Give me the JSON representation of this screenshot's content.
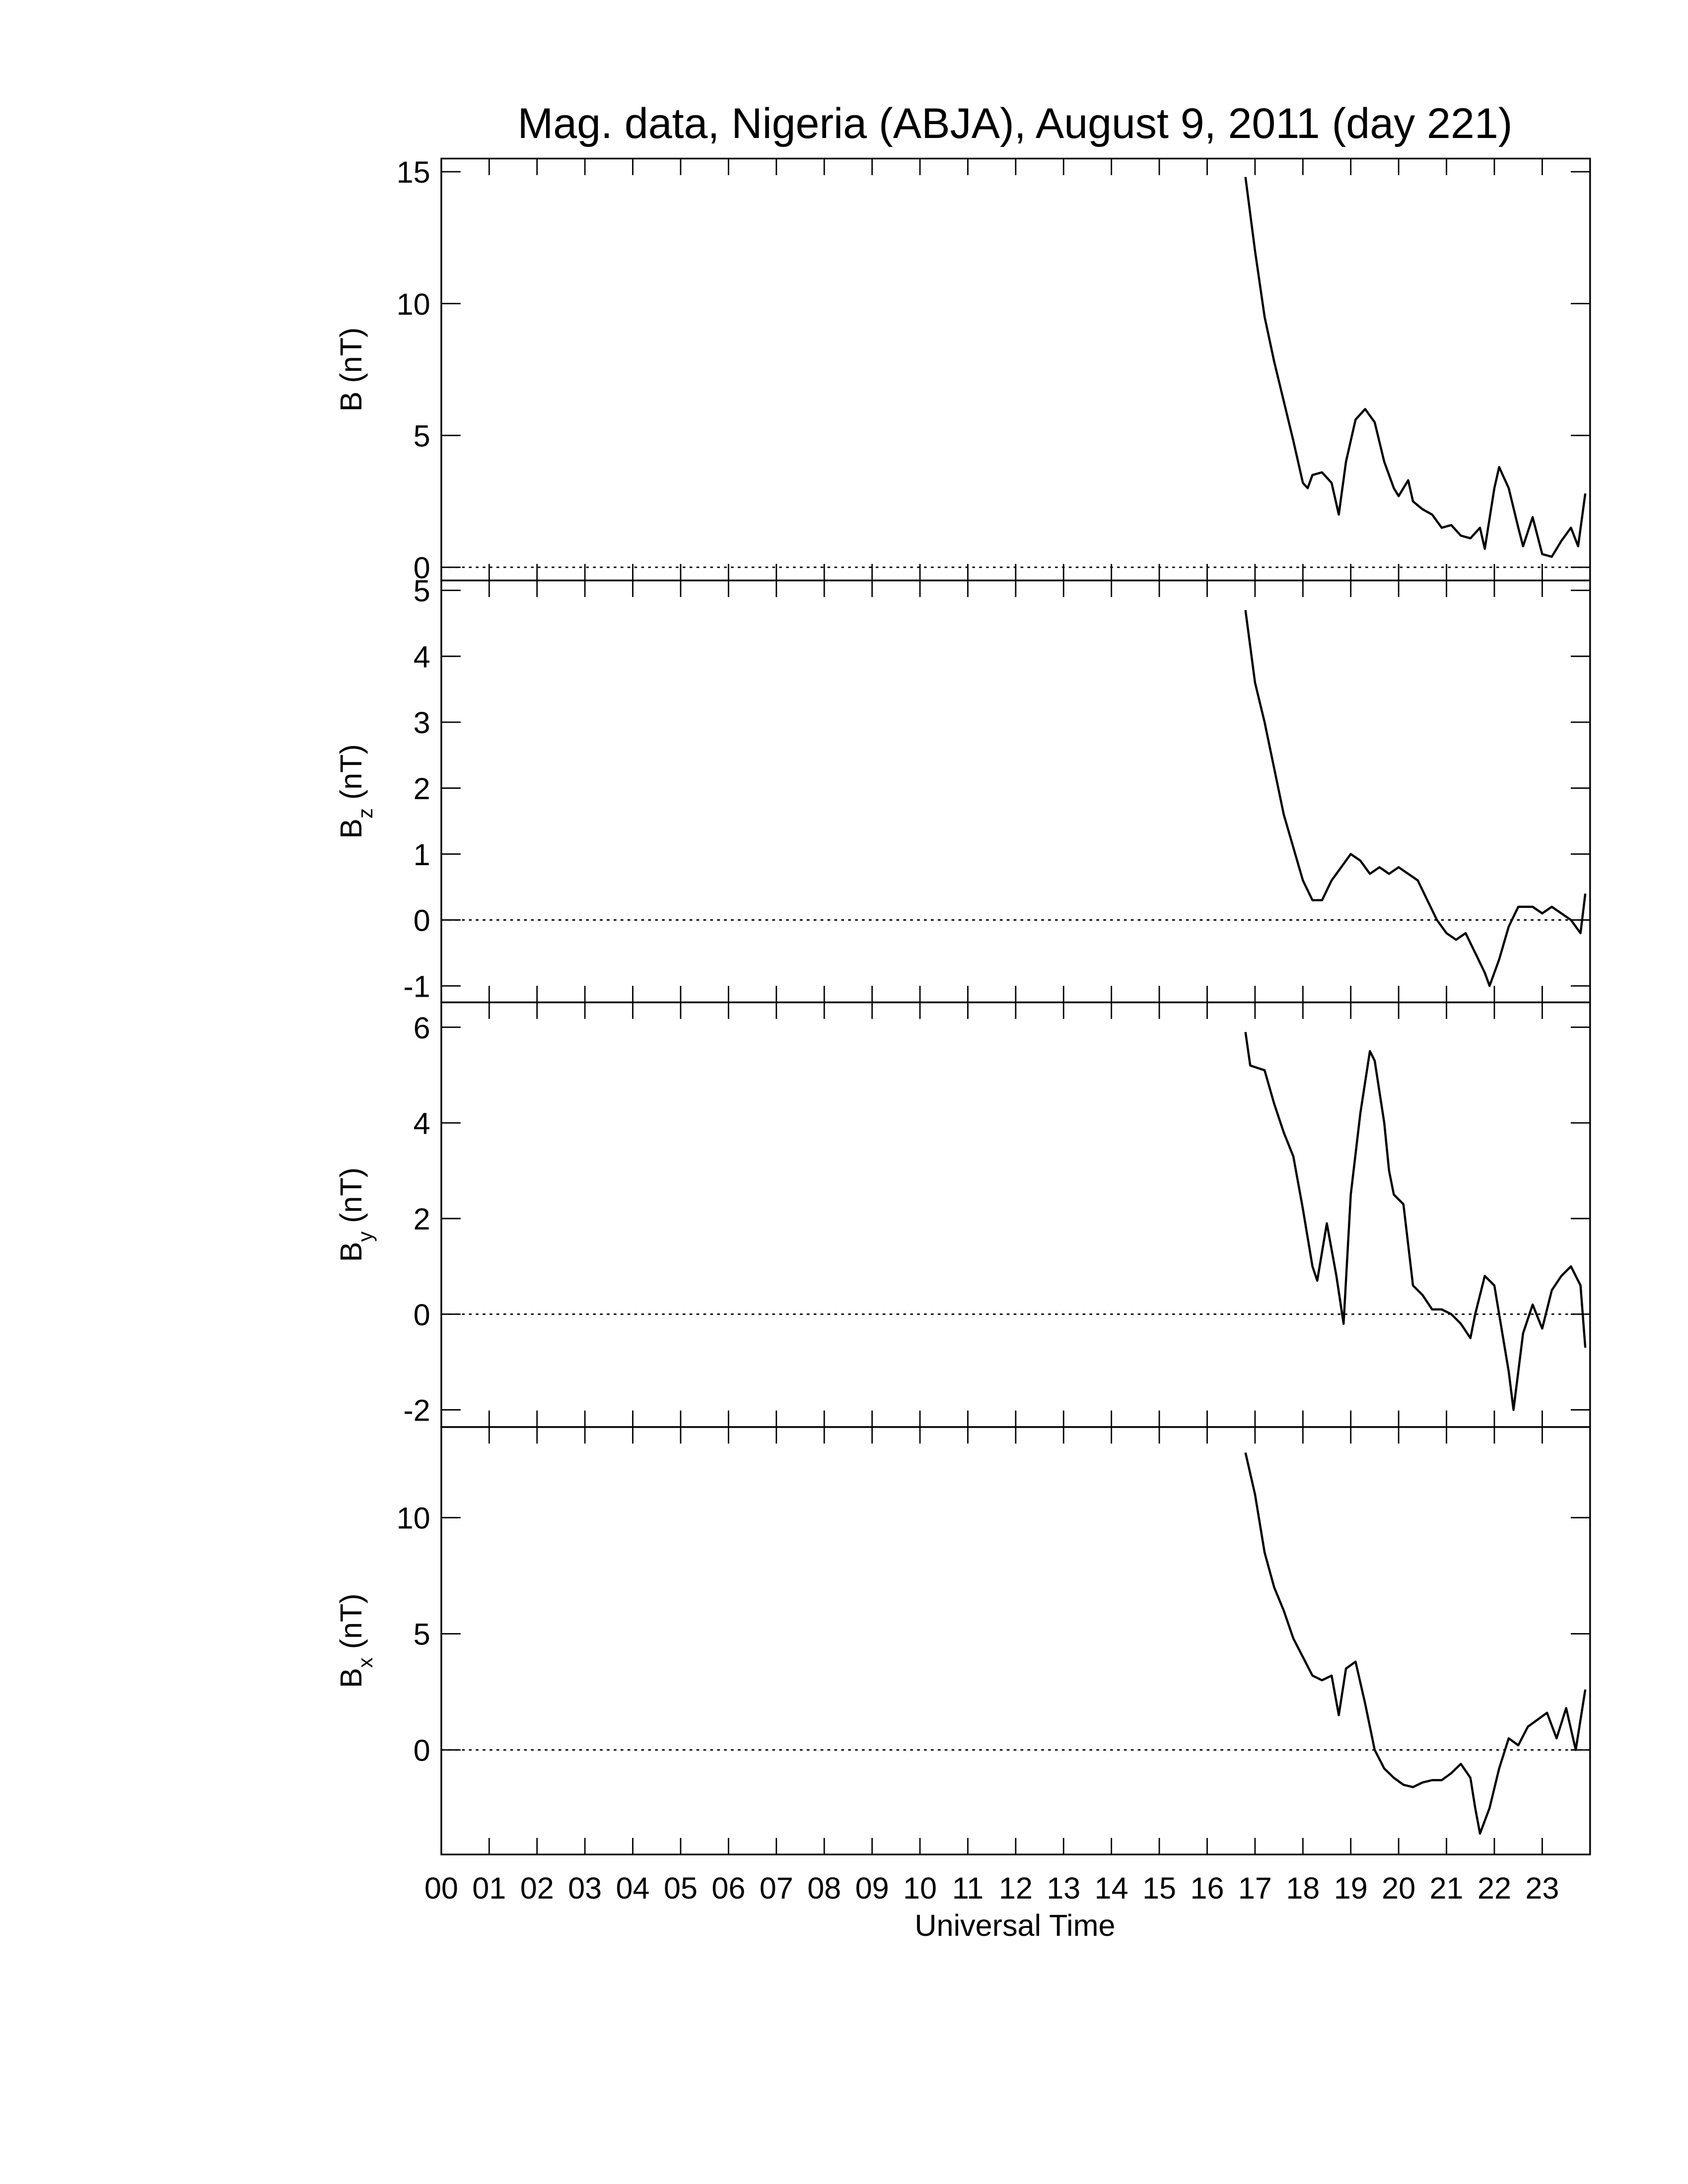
{
  "chart_data": {
    "type": "line",
    "title": "Mag. data, Nigeria (ABJA), August 9, 2011 (day 221)",
    "xlabel": "Universal Time",
    "xlim": [
      0,
      24
    ],
    "xticks": [
      {
        "value": 0,
        "label": "00"
      },
      {
        "value": 1,
        "label": "01"
      },
      {
        "value": 2,
        "label": "02"
      },
      {
        "value": 3,
        "label": "03"
      },
      {
        "value": 4,
        "label": "04"
      },
      {
        "value": 5,
        "label": "05"
      },
      {
        "value": 6,
        "label": "06"
      },
      {
        "value": 7,
        "label": "07"
      },
      {
        "value": 8,
        "label": "08"
      },
      {
        "value": 9,
        "label": "09"
      },
      {
        "value": 10,
        "label": "10"
      },
      {
        "value": 11,
        "label": "11"
      },
      {
        "value": 12,
        "label": "12"
      },
      {
        "value": 13,
        "label": "13"
      },
      {
        "value": 14,
        "label": "14"
      },
      {
        "value": 15,
        "label": "15"
      },
      {
        "value": 16,
        "label": "16"
      },
      {
        "value": 17,
        "label": "17"
      },
      {
        "value": 18,
        "label": "18"
      },
      {
        "value": 19,
        "label": "19"
      },
      {
        "value": 20,
        "label": "20"
      },
      {
        "value": 21,
        "label": "21"
      },
      {
        "value": 22,
        "label": "22"
      },
      {
        "value": 23,
        "label": "23"
      }
    ],
    "color": "#000000",
    "panels": [
      {
        "ylabel_base": "B",
        "ylabel_unit": " (nT)",
        "ylim": [
          -0.5,
          15.5
        ],
        "yticks": [
          0,
          5,
          10,
          15
        ],
        "reference_line": 0,
        "x": [
          16.8,
          17.0,
          17.2,
          17.4,
          17.6,
          17.8,
          18.0,
          18.1,
          18.2,
          18.4,
          18.6,
          18.75,
          18.9,
          19.1,
          19.3,
          19.5,
          19.7,
          19.9,
          20.0,
          20.2,
          20.3,
          20.5,
          20.7,
          20.9,
          21.1,
          21.3,
          21.5,
          21.7,
          21.8,
          22.0,
          22.1,
          22.3,
          22.5,
          22.6,
          22.8,
          23.0,
          23.2,
          23.4,
          23.6,
          23.75,
          23.9
        ],
        "values": [
          14.8,
          12,
          9.5,
          7.8,
          6.3,
          4.8,
          3.2,
          3.0,
          3.5,
          3.6,
          3.2,
          2.0,
          4.0,
          5.6,
          6.0,
          5.5,
          4.0,
          3.0,
          2.7,
          3.3,
          2.5,
          2.2,
          2.0,
          1.5,
          1.6,
          1.2,
          1.1,
          1.5,
          0.7,
          3.0,
          3.8,
          3.0,
          1.5,
          0.8,
          1.9,
          0.5,
          0.4,
          1.0,
          1.5,
          0.8,
          2.8
        ]
      },
      {
        "ylabel_base": "B",
        "ylabel_sub": "z",
        "ylabel_unit": " (nT)",
        "ylim": [
          -1.25,
          5.15
        ],
        "yticks": [
          -1,
          0,
          1,
          2,
          3,
          4,
          5
        ],
        "reference_line": 0,
        "x": [
          16.8,
          17.0,
          17.2,
          17.4,
          17.6,
          17.8,
          18.0,
          18.2,
          18.4,
          18.6,
          18.8,
          19.0,
          19.2,
          19.4,
          19.6,
          19.8,
          20.0,
          20.2,
          20.4,
          20.6,
          20.8,
          21.0,
          21.2,
          21.4,
          21.6,
          21.8,
          21.9,
          22.1,
          22.3,
          22.5,
          22.8,
          23.0,
          23.2,
          23.4,
          23.6,
          23.8,
          23.9
        ],
        "values": [
          4.7,
          3.6,
          3.0,
          2.3,
          1.6,
          1.1,
          0.6,
          0.3,
          0.3,
          0.6,
          0.8,
          1.0,
          0.9,
          0.7,
          0.8,
          0.7,
          0.8,
          0.7,
          0.6,
          0.3,
          0.0,
          -0.2,
          -0.3,
          -0.2,
          -0.5,
          -0.8,
          -1.0,
          -0.6,
          -0.1,
          0.2,
          0.2,
          0.1,
          0.2,
          0.1,
          0.0,
          -0.2,
          0.4
        ]
      },
      {
        "ylabel_base": "B",
        "ylabel_sub": "y",
        "ylabel_unit": " (nT)",
        "ylim": [
          -2.36,
          6.52
        ],
        "yticks": [
          -2,
          0,
          2,
          4,
          6
        ],
        "reference_line": 0,
        "x": [
          16.8,
          16.9,
          17.2,
          17.4,
          17.6,
          17.8,
          18.0,
          18.2,
          18.3,
          18.5,
          18.7,
          18.85,
          19.0,
          19.2,
          19.4,
          19.5,
          19.7,
          19.8,
          19.9,
          20.1,
          20.3,
          20.5,
          20.7,
          20.9,
          21.1,
          21.3,
          21.5,
          21.6,
          21.8,
          22.0,
          22.1,
          22.3,
          22.4,
          22.6,
          22.8,
          23.0,
          23.2,
          23.4,
          23.6,
          23.8,
          23.9
        ],
        "values": [
          5.9,
          5.2,
          5.1,
          4.4,
          3.8,
          3.3,
          2.2,
          1.0,
          0.7,
          1.9,
          0.8,
          -0.2,
          2.5,
          4.2,
          5.5,
          5.3,
          4.0,
          3.0,
          2.5,
          2.3,
          0.6,
          0.4,
          0.1,
          0.1,
          0.0,
          -0.2,
          -0.5,
          0.0,
          0.8,
          0.6,
          0.0,
          -1.2,
          -2.0,
          -0.4,
          0.2,
          -0.3,
          0.5,
          0.8,
          1.0,
          0.6,
          -0.7
        ]
      },
      {
        "ylabel_base": "B",
        "ylabel_sub": "x",
        "ylabel_unit": " (nT)",
        "ylim": [
          -4.5,
          13.9
        ],
        "yticks": [
          0,
          5,
          10
        ],
        "reference_line": 0,
        "x": [
          16.8,
          17.0,
          17.2,
          17.4,
          17.6,
          17.8,
          18.0,
          18.2,
          18.4,
          18.6,
          18.75,
          18.9,
          19.1,
          19.3,
          19.5,
          19.7,
          19.9,
          20.1,
          20.3,
          20.5,
          20.7,
          20.9,
          21.1,
          21.3,
          21.5,
          21.6,
          21.7,
          21.9,
          22.1,
          22.3,
          22.5,
          22.7,
          22.9,
          23.1,
          23.3,
          23.5,
          23.7,
          23.9
        ],
        "values": [
          12.8,
          11.0,
          8.5,
          7.0,
          6.0,
          4.8,
          4.0,
          3.2,
          3.0,
          3.2,
          1.5,
          3.5,
          3.8,
          2.0,
          0.0,
          -0.8,
          -1.2,
          -1.5,
          -1.6,
          -1.4,
          -1.3,
          -1.3,
          -1.0,
          -0.6,
          -1.2,
          -2.5,
          -3.6,
          -2.5,
          -0.8,
          0.5,
          0.2,
          1.0,
          1.3,
          1.6,
          0.5,
          1.8,
          0.0,
          2.6
        ]
      }
    ]
  }
}
